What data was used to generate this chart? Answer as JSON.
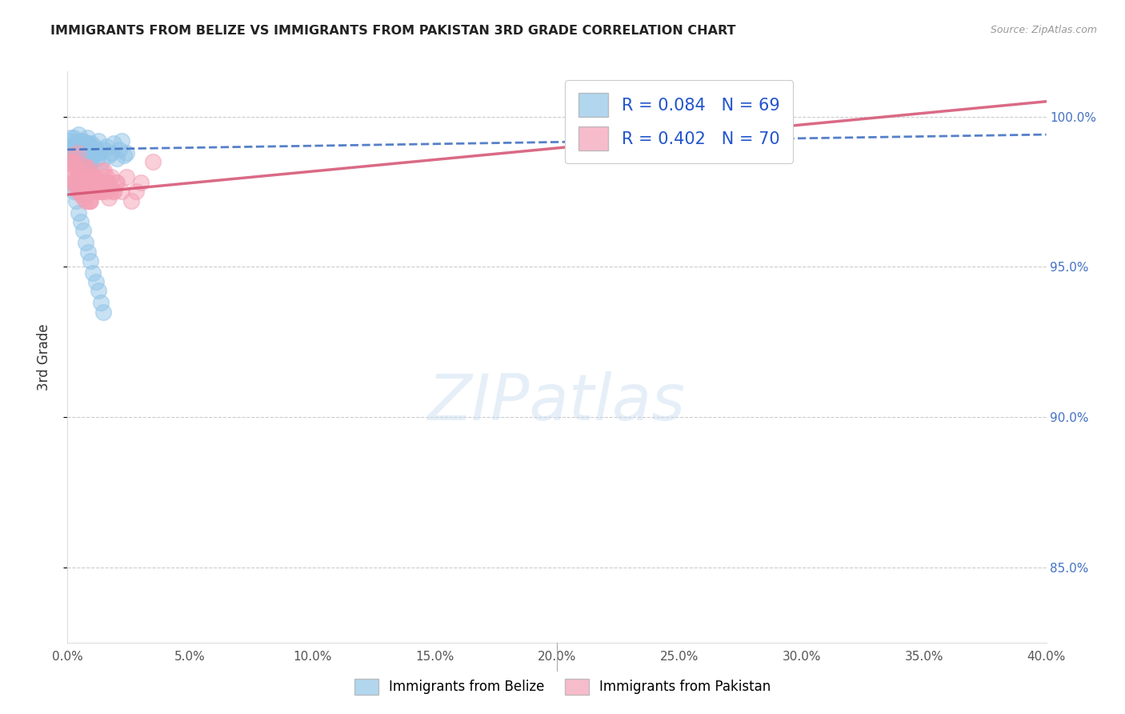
{
  "title": "IMMIGRANTS FROM BELIZE VS IMMIGRANTS FROM PAKISTAN 3RD GRADE CORRELATION CHART",
  "source": "Source: ZipAtlas.com",
  "ylabel_label": "3rd Grade",
  "y_ticks": [
    85.0,
    90.0,
    95.0,
    100.0
  ],
  "x_ticks": [
    0.0,
    5.0,
    10.0,
    15.0,
    20.0,
    25.0,
    30.0,
    35.0,
    40.0
  ],
  "legend_belize": "Immigrants from Belize",
  "legend_pakistan": "Immigrants from Pakistan",
  "R_belize": 0.084,
  "N_belize": 69,
  "R_pakistan": 0.402,
  "N_pakistan": 70,
  "color_belize": "#92C5E8",
  "color_pakistan": "#F4A0B5",
  "color_blue_text": "#2255CC",
  "xlim": [
    0,
    40
  ],
  "ylim": [
    82.5,
    101.5
  ],
  "belize_x": [
    0.05,
    0.1,
    0.15,
    0.2,
    0.25,
    0.3,
    0.35,
    0.4,
    0.45,
    0.5,
    0.55,
    0.6,
    0.65,
    0.7,
    0.75,
    0.8,
    0.85,
    0.9,
    0.95,
    1.0,
    0.12,
    0.18,
    0.22,
    0.28,
    0.32,
    0.38,
    0.42,
    0.48,
    0.52,
    0.58,
    0.62,
    0.68,
    0.72,
    0.78,
    0.82,
    0.88,
    0.92,
    0.98,
    1.05,
    1.1,
    1.15,
    1.2,
    1.25,
    1.3,
    1.4,
    1.5,
    1.6,
    1.7,
    1.8,
    1.9,
    2.0,
    2.1,
    2.2,
    2.3,
    2.4,
    0.15,
    0.25,
    0.35,
    0.45,
    0.55,
    0.65,
    0.75,
    0.85,
    0.95,
    1.05,
    1.15,
    1.25,
    1.35,
    1.45
  ],
  "belize_y": [
    98.5,
    99.2,
    98.8,
    99.0,
    99.3,
    98.7,
    99.1,
    98.9,
    99.4,
    98.6,
    99.0,
    98.8,
    99.2,
    98.5,
    99.0,
    98.7,
    99.1,
    98.4,
    98.9,
    98.6,
    99.3,
    98.8,
    99.0,
    98.7,
    99.1,
    98.5,
    98.9,
    98.6,
    99.2,
    98.4,
    98.8,
    99.0,
    98.6,
    98.9,
    99.3,
    98.5,
    98.8,
    99.1,
    98.7,
    99.0,
    98.9,
    98.6,
    99.2,
    98.8,
    98.5,
    98.9,
    99.0,
    98.7,
    98.8,
    99.1,
    98.6,
    98.9,
    99.2,
    98.7,
    98.8,
    97.8,
    97.5,
    97.2,
    96.8,
    96.5,
    96.2,
    95.8,
    95.5,
    95.2,
    94.8,
    94.5,
    94.2,
    93.8,
    93.5
  ],
  "pakistan_x": [
    0.05,
    0.1,
    0.15,
    0.2,
    0.25,
    0.3,
    0.35,
    0.4,
    0.45,
    0.5,
    0.55,
    0.6,
    0.65,
    0.7,
    0.75,
    0.8,
    0.85,
    0.9,
    0.95,
    1.0,
    1.05,
    1.1,
    1.2,
    1.3,
    1.4,
    1.5,
    1.6,
    1.7,
    1.8,
    1.9,
    2.0,
    2.2,
    2.4,
    2.6,
    2.8,
    3.0,
    0.18,
    0.28,
    0.38,
    0.48,
    0.58,
    0.68,
    0.78,
    0.88,
    0.98,
    1.08,
    1.18,
    1.28,
    1.38,
    1.48,
    1.58,
    1.68,
    1.78,
    1.88,
    1.98,
    0.22,
    0.32,
    0.42,
    0.52,
    0.62,
    0.72,
    0.82,
    0.92,
    1.02,
    1.12,
    1.22,
    1.32,
    1.42,
    27.5,
    3.5
  ],
  "pakistan_y": [
    98.2,
    98.5,
    98.0,
    98.7,
    97.8,
    98.3,
    97.6,
    98.8,
    97.5,
    98.1,
    97.4,
    98.4,
    97.3,
    98.0,
    97.2,
    98.2,
    97.5,
    97.8,
    97.2,
    97.9,
    97.6,
    98.0,
    97.8,
    97.5,
    98.2,
    97.8,
    98.0,
    97.3,
    97.6,
    97.5,
    97.8,
    97.5,
    98.0,
    97.2,
    97.5,
    97.8,
    98.5,
    97.8,
    98.2,
    97.5,
    98.0,
    97.5,
    98.3,
    97.2,
    97.8,
    98.0,
    97.5,
    97.8,
    97.5,
    98.2,
    97.5,
    97.8,
    98.0,
    97.5,
    97.8,
    98.5,
    97.8,
    98.2,
    97.5,
    98.0,
    97.5,
    98.3,
    97.2,
    97.8,
    98.0,
    97.5,
    97.8,
    97.5,
    100.0,
    98.5
  ],
  "trend_belize_x0": 0,
  "trend_belize_y0": 98.9,
  "trend_belize_x1": 40,
  "trend_belize_y1": 99.4,
  "trend_pakistan_x0": 0,
  "trend_pakistan_y0": 97.4,
  "trend_pakistan_x1": 40,
  "trend_pakistan_y1": 100.5
}
